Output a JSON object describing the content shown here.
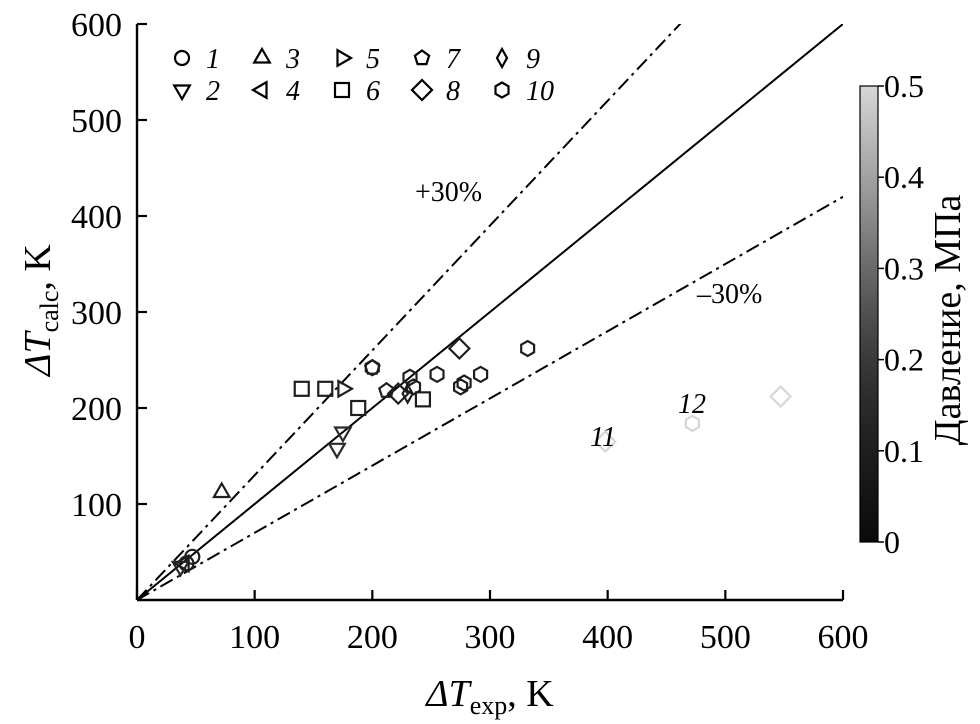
{
  "chart_data": {
    "type": "scatter",
    "title": "",
    "xlabel": {
      "main": "ΔT",
      "sub": "exp",
      "unit": ", K"
    },
    "ylabel": {
      "main": "ΔT",
      "sub": "calc",
      "unit": ", K"
    },
    "xlim": [
      0,
      600
    ],
    "ylim": [
      0,
      600
    ],
    "xticks": [
      "0",
      "100",
      "200",
      "300",
      "400",
      "500",
      "600"
    ],
    "yticks": [
      "100",
      "200",
      "300",
      "400",
      "500",
      "600"
    ],
    "grid": false,
    "reference_lines": [
      {
        "label": "",
        "slope": 1.0,
        "style": "solid"
      },
      {
        "label": "+30%",
        "slope": 1.3,
        "style": "dash-dot"
      },
      {
        "label": "–30%",
        "slope": 0.7,
        "style": "dash-dot"
      }
    ],
    "legend": [
      {
        "id": "1",
        "marker": "circle"
      },
      {
        "id": "2",
        "marker": "triangle-down"
      },
      {
        "id": "3",
        "marker": "triangle-up"
      },
      {
        "id": "4",
        "marker": "triangle-left"
      },
      {
        "id": "5",
        "marker": "triangle-right"
      },
      {
        "id": "6",
        "marker": "square"
      },
      {
        "id": "7",
        "marker": "pentagon"
      },
      {
        "id": "8",
        "marker": "diamond"
      },
      {
        "id": "9",
        "marker": "thin-diamond"
      },
      {
        "id": "10",
        "marker": "hexagon"
      }
    ],
    "series": [
      {
        "id": "1",
        "marker": "circle",
        "pressure": 0.1,
        "points": [
          [
            47,
            45
          ],
          [
            42,
            38
          ]
        ]
      },
      {
        "id": "2",
        "marker": "triangle-down",
        "pressure": 0.15,
        "points": [
          [
            37,
            35
          ],
          [
            170,
            158
          ],
          [
            175,
            175
          ]
        ]
      },
      {
        "id": "3",
        "marker": "triangle-up",
        "pressure": 0.1,
        "points": [
          [
            72,
            112
          ]
        ]
      },
      {
        "id": "4",
        "marker": "triangle-left",
        "pressure": 0.1,
        "points": [
          [
            40,
            38
          ]
        ]
      },
      {
        "id": "5",
        "marker": "triangle-right",
        "pressure": 0.1,
        "points": [
          [
            175,
            220
          ]
        ]
      },
      {
        "id": "6",
        "marker": "square",
        "pressure": 0.1,
        "points": [
          [
            140,
            220
          ],
          [
            160,
            220
          ],
          [
            188,
            200
          ],
          [
            243,
            209
          ]
        ]
      },
      {
        "id": "7",
        "marker": "pentagon",
        "pressure": 0.1,
        "points": [
          [
            200,
            242
          ],
          [
            212,
            218
          ]
        ]
      },
      {
        "id": "8",
        "marker": "diamond",
        "pressure": 0.1,
        "points": [
          [
            274,
            262
          ],
          [
            222,
            215
          ]
        ]
      },
      {
        "id": "9",
        "marker": "thin-diamond",
        "pressure": 0.1,
        "points": [
          [
            230,
            215
          ]
        ]
      },
      {
        "id": "10",
        "marker": "hexagon",
        "pressure": 0.1,
        "points": [
          [
            200,
            242
          ],
          [
            232,
            232
          ],
          [
            255,
            235
          ],
          [
            275,
            222
          ],
          [
            278,
            226
          ],
          [
            292,
            235
          ],
          [
            332,
            262
          ],
          [
            235,
            222
          ]
        ]
      },
      {
        "id": "11",
        "marker": "diamond",
        "pressure": 0.5,
        "label": "11",
        "points": [
          [
            398,
            165
          ],
          [
            547,
            212
          ]
        ]
      },
      {
        "id": "12",
        "marker": "hexagon",
        "pressure": 0.5,
        "label": "12",
        "points": [
          [
            472,
            184
          ]
        ]
      }
    ],
    "colorbar": {
      "label": "Давление, МПа",
      "range": [
        0,
        0.5
      ],
      "ticks": [
        "0",
        "0.1",
        "0.2",
        "0.3",
        "0.4",
        "0.5"
      ],
      "stops": [
        "#0a0a0a",
        "#141414",
        "#1e1e1e",
        "#2a2a2a",
        "#3a3a3a",
        "#505050",
        "#6a6a6a",
        "#868686",
        "#a2a2a2",
        "#bcbcbc",
        "#d6d6d6"
      ]
    }
  }
}
